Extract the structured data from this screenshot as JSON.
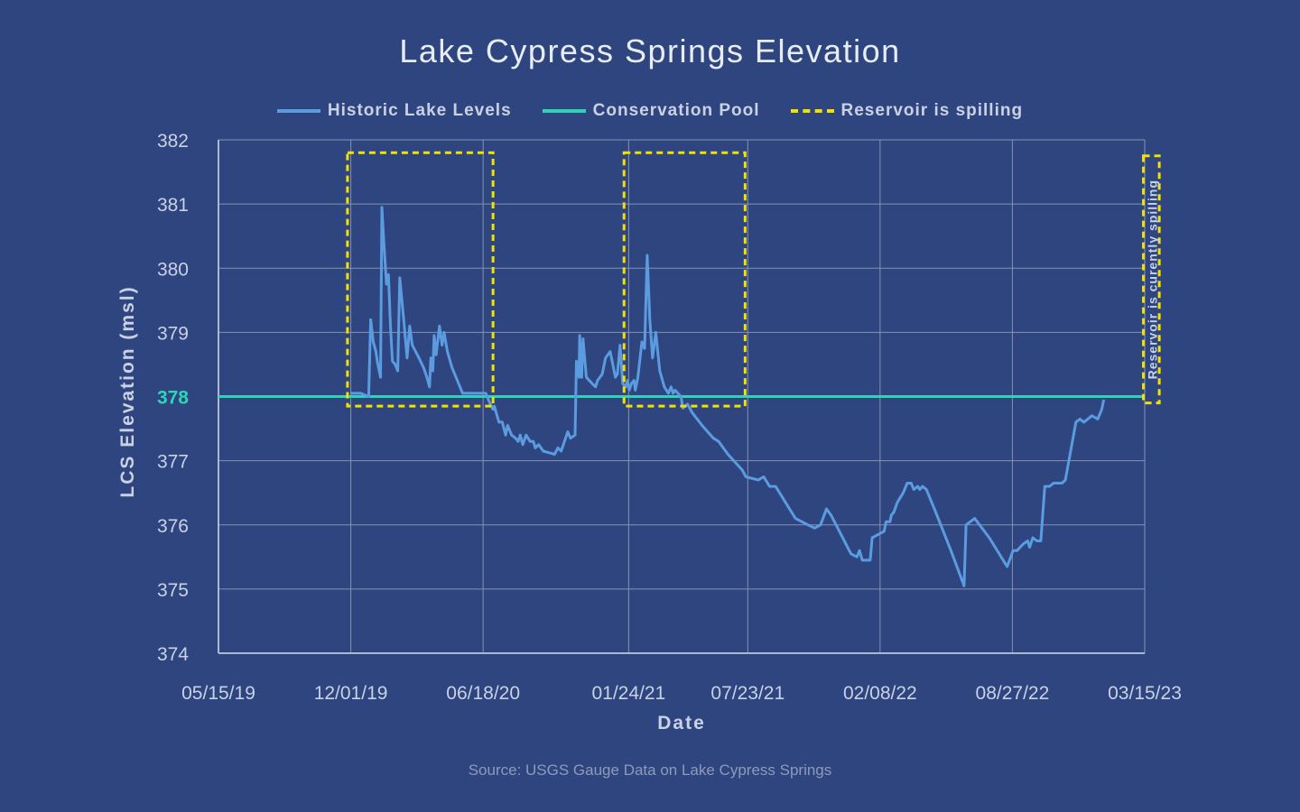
{
  "chart_data": {
    "type": "line",
    "title": "Lake Cypress Springs Elevation",
    "xlabel": "Date",
    "ylabel": "LCS Elevation (msl)",
    "source": "Source: USGS Gauge Data on Lake Cypress Springs",
    "xlim": [
      "05/15/19",
      "03/15/23"
    ],
    "x_ticks": [
      "05/15/19",
      "12/01/19",
      "06/18/20",
      "01/24/21",
      "07/23/21",
      "02/08/22",
      "08/27/22",
      "03/15/23"
    ],
    "ylim": [
      374,
      382
    ],
    "y_ticks": [
      "374",
      "375",
      "376",
      "377",
      "378",
      "379",
      "380",
      "381",
      "382"
    ],
    "y_highlight": "378",
    "grid": true,
    "legend_position": "top-center",
    "legend": [
      {
        "name": "Historic Lake Levels",
        "color": "#5b9be0",
        "style": "solid"
      },
      {
        "name": "Conservation Pool",
        "color": "#2ed3b8",
        "style": "solid"
      },
      {
        "name": "Reservoir is spilling",
        "color": "#f2e200",
        "style": "dashed"
      }
    ],
    "series": [
      {
        "name": "Historic Lake Levels",
        "color": "#5b9be0",
        "points": [
          [
            "12/01/19",
            378.05
          ],
          [
            "12/16/19",
            378.05
          ],
          [
            "12/28/19",
            378.0
          ],
          [
            "12/31/19",
            379.2
          ],
          [
            "01/04/20",
            378.85
          ],
          [
            "01/08/20",
            378.7
          ],
          [
            "01/10/20",
            378.55
          ],
          [
            "01/15/20",
            378.3
          ],
          [
            "01/17/20",
            380.95
          ],
          [
            "01/20/20",
            380.4
          ],
          [
            "01/24/20",
            379.75
          ],
          [
            "01/27/20",
            379.9
          ],
          [
            "01/30/20",
            379.1
          ],
          [
            "02/02/20",
            378.55
          ],
          [
            "02/06/20",
            378.5
          ],
          [
            "02/10/20",
            378.4
          ],
          [
            "02/13/20",
            379.85
          ],
          [
            "02/19/20",
            379.2
          ],
          [
            "02/24/20",
            378.6
          ],
          [
            "02/28/20",
            379.1
          ],
          [
            "03/03/20",
            378.8
          ],
          [
            "03/13/20",
            378.6
          ],
          [
            "03/20/20",
            378.45
          ],
          [
            "03/25/20",
            378.3
          ],
          [
            "03/29/20",
            378.15
          ],
          [
            "03/31/20",
            378.6
          ],
          [
            "04/03/20",
            378.4
          ],
          [
            "04/05/20",
            378.95
          ],
          [
            "04/08/20",
            378.65
          ],
          [
            "04/13/20",
            379.1
          ],
          [
            "04/17/20",
            378.8
          ],
          [
            "04/20/20",
            379.0
          ],
          [
            "04/25/20",
            378.7
          ],
          [
            "05/02/20",
            378.45
          ],
          [
            "05/10/20",
            378.25
          ],
          [
            "05/18/20",
            378.05
          ],
          [
            "06/22/20",
            378.05
          ],
          [
            "06/28/20",
            377.9
          ],
          [
            "07/03/20",
            377.8
          ],
          [
            "07/05/20",
            377.85
          ],
          [
            "07/12/20",
            377.6
          ],
          [
            "07/17/20",
            377.6
          ],
          [
            "07/22/20",
            377.4
          ],
          [
            "07/25/20",
            377.55
          ],
          [
            "07/31/20",
            377.4
          ],
          [
            "08/06/20",
            377.35
          ],
          [
            "08/10/20",
            377.3
          ],
          [
            "08/13/20",
            377.4
          ],
          [
            "08/17/20",
            377.25
          ],
          [
            "08/22/20",
            377.4
          ],
          [
            "08/28/20",
            377.3
          ],
          [
            "09/02/20",
            377.3
          ],
          [
            "09/05/20",
            377.2
          ],
          [
            "09/10/20",
            377.25
          ],
          [
            "09/17/20",
            377.15
          ],
          [
            "09/27/20",
            377.12
          ],
          [
            "10/04/20",
            377.1
          ],
          [
            "10/09/20",
            377.2
          ],
          [
            "10/14/20",
            377.15
          ],
          [
            "10/24/20",
            377.45
          ],
          [
            "10/28/20",
            377.35
          ],
          [
            "11/04/20",
            377.4
          ],
          [
            "11/06/20",
            378.55
          ],
          [
            "11/10/20",
            378.3
          ],
          [
            "11/11/20",
            378.95
          ],
          [
            "11/14/20",
            378.3
          ],
          [
            "11/16/20",
            378.9
          ],
          [
            "11/21/20",
            378.3
          ],
          [
            "11/30/20",
            378.2
          ],
          [
            "12/05/20",
            378.15
          ],
          [
            "12/08/20",
            378.25
          ],
          [
            "12/15/20",
            378.35
          ],
          [
            "12/20/20",
            378.6
          ],
          [
            "12/27/20",
            378.7
          ],
          [
            "01/04/21",
            378.3
          ],
          [
            "01/07/21",
            378.35
          ],
          [
            "01/11/21",
            378.8
          ],
          [
            "01/15/21",
            378.2
          ],
          [
            "01/20/21",
            378.15
          ],
          [
            "01/22/21",
            378.25
          ],
          [
            "01/25/21",
            378.1
          ],
          [
            "01/28/21",
            378.2
          ],
          [
            "02/01/21",
            378.25
          ],
          [
            "02/03/21",
            378.1
          ],
          [
            "02/07/21",
            378.3
          ],
          [
            "02/13/21",
            378.85
          ],
          [
            "02/17/21",
            378.75
          ],
          [
            "02/21/21",
            380.2
          ],
          [
            "02/25/21",
            379.2
          ],
          [
            "03/01/21",
            378.6
          ],
          [
            "03/06/21",
            379.0
          ],
          [
            "03/12/21",
            378.4
          ],
          [
            "03/19/21",
            378.15
          ],
          [
            "03/25/21",
            378.05
          ],
          [
            "03/29/21",
            378.15
          ],
          [
            "04/01/21",
            378.05
          ],
          [
            "04/04/21",
            378.1
          ],
          [
            "04/13/21",
            378.0
          ],
          [
            "04/16/21",
            377.82
          ],
          [
            "04/23/21",
            377.88
          ],
          [
            "04/30/21",
            377.75
          ],
          [
            "05/15/21",
            377.55
          ],
          [
            "06/01/21",
            377.35
          ],
          [
            "06/09/21",
            377.3
          ],
          [
            "06/23/21",
            377.1
          ],
          [
            "07/15/21",
            376.85
          ],
          [
            "07/20/21",
            376.75
          ],
          [
            "08/08/21",
            376.7
          ],
          [
            "08/16/21",
            376.75
          ],
          [
            "08/25/21",
            376.6
          ],
          [
            "09/03/21",
            376.6
          ],
          [
            "09/12/21",
            376.45
          ],
          [
            "09/21/21",
            376.3
          ],
          [
            "10/03/21",
            376.1
          ],
          [
            "10/22/21",
            376.0
          ],
          [
            "11/01/21",
            375.95
          ],
          [
            "11/10/21",
            376.0
          ],
          [
            "11/19/21",
            376.25
          ],
          [
            "11/26/21",
            376.15
          ],
          [
            "12/26/21",
            375.55
          ],
          [
            "01/04/22",
            375.5
          ],
          [
            "01/08/22",
            375.6
          ],
          [
            "01/12/22",
            375.45
          ],
          [
            "01/16/22",
            375.45
          ],
          [
            "01/24/22",
            375.45
          ],
          [
            "01/27/22",
            375.8
          ],
          [
            "02/05/22",
            375.85
          ],
          [
            "02/14/22",
            375.9
          ],
          [
            "02/17/22",
            376.05
          ],
          [
            "02/23/22",
            376.05
          ],
          [
            "02/25/22",
            376.15
          ],
          [
            "03/01/22",
            376.2
          ],
          [
            "03/06/22",
            376.35
          ],
          [
            "03/15/22",
            376.5
          ],
          [
            "03/21/22",
            376.65
          ],
          [
            "03/27/22",
            376.65
          ],
          [
            "03/31/22",
            376.55
          ],
          [
            "04/06/22",
            376.6
          ],
          [
            "04/09/22",
            376.55
          ],
          [
            "04/13/22",
            376.6
          ],
          [
            "04/19/22",
            376.55
          ],
          [
            "05/03/22",
            376.2
          ],
          [
            "05/26/22",
            375.6
          ],
          [
            "06/15/22",
            375.05
          ],
          [
            "06/18/22",
            376.0
          ],
          [
            "07/01/22",
            376.1
          ],
          [
            "07/23/22",
            375.8
          ],
          [
            "08/19/22",
            375.35
          ],
          [
            "08/28/22",
            375.6
          ],
          [
            "09/03/22",
            375.6
          ],
          [
            "09/12/22",
            375.7
          ],
          [
            "09/19/22",
            375.75
          ],
          [
            "09/22/22",
            375.65
          ],
          [
            "09/27/22",
            375.8
          ],
          [
            "10/03/22",
            375.75
          ],
          [
            "10/09/22",
            375.75
          ],
          [
            "10/15/22",
            376.6
          ],
          [
            "10/22/22",
            376.6
          ],
          [
            "10/28/22",
            376.65
          ],
          [
            "11/10/22",
            376.65
          ],
          [
            "11/15/22",
            376.7
          ],
          [
            "12/01/22",
            377.6
          ],
          [
            "12/07/22",
            377.65
          ],
          [
            "12/13/22",
            377.6
          ],
          [
            "12/19/22",
            377.65
          ],
          [
            "12/25/22",
            377.7
          ],
          [
            "01/03/23",
            377.65
          ],
          [
            "01/09/23",
            377.8
          ],
          [
            "01/12/23",
            377.95
          ]
        ]
      },
      {
        "name": "Conservation Pool",
        "color": "#2ed3b8",
        "points": [
          [
            "05/15/19",
            378
          ],
          [
            "03/15/23",
            378
          ]
        ]
      }
    ],
    "spill_regions": [
      {
        "start": "11/26/19",
        "end": "07/03/20",
        "y_low": 377.85,
        "y_high": 381.8
      },
      {
        "start": "01/17/21",
        "end": "07/19/21",
        "y_low": 377.85,
        "y_high": 381.8
      },
      {
        "start": "03/13/23",
        "end": "04/06/23",
        "y_low": 377.9,
        "y_high": 381.75
      }
    ],
    "annotation": "Reservoir is curently spilling"
  }
}
